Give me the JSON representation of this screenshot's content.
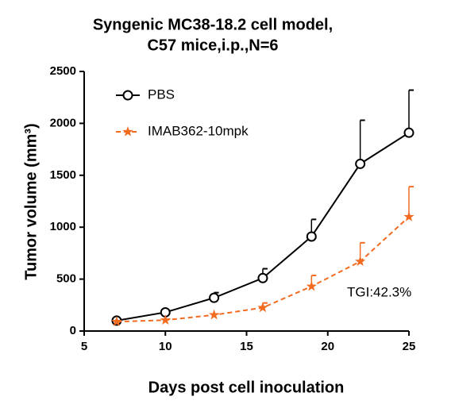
{
  "chart_data": {
    "type": "line",
    "title": [
      "Syngenic MC38-18.2 cell model,",
      "C57 mice,i.p.,N=6"
    ],
    "x_label": "Days post cell inoculation",
    "y_label": "Tumor volume (mm³)",
    "x": [
      7,
      10,
      13,
      16,
      19,
      22,
      25
    ],
    "series": [
      {
        "name": "PBS",
        "color": "#000000",
        "marker": "circle",
        "dashed": false,
        "values": [
          100,
          180,
          320,
          510,
          910,
          1610,
          1910
        ],
        "errors": [
          10,
          15,
          50,
          90,
          165,
          420,
          410
        ]
      },
      {
        "name": "IMAB362-10mpk",
        "color": "#f26b21",
        "marker": "star",
        "dashed": true,
        "values": [
          90,
          105,
          155,
          225,
          430,
          670,
          1100
        ],
        "errors": [
          5,
          10,
          10,
          45,
          105,
          180,
          290
        ]
      }
    ],
    "annotation": "TGI:42.3%",
    "xlim": [
      5,
      25
    ],
    "xticks": [
      5,
      10,
      15,
      20,
      25
    ],
    "ylim": [
      0,
      2500
    ],
    "yticks": [
      0,
      500,
      1000,
      1500,
      2000,
      2500
    ],
    "grid": false,
    "legend": "upper left"
  }
}
